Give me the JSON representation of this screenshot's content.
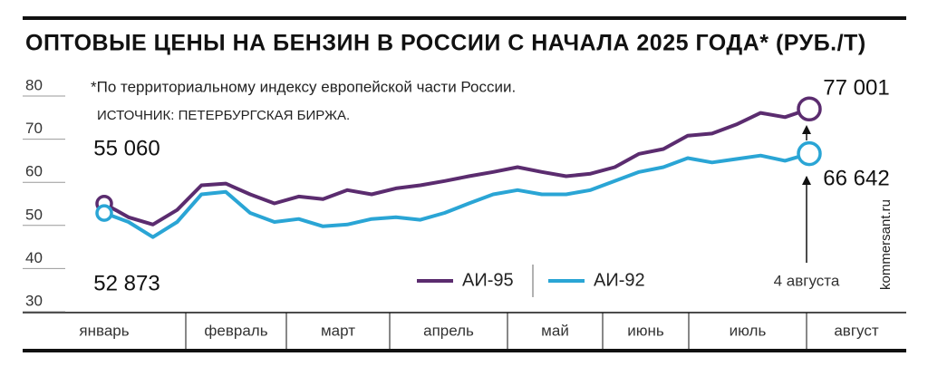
{
  "chart_data": {
    "type": "line",
    "title": "ОПТОВЫЕ ЦЕНЫ НА БЕНЗИН В РОССИИ С НАЧАЛА 2025 ГОДА* (РУБ./Т)",
    "footnote": "*По территориальному индексу европейской части России.",
    "source": "ИСТОЧНИК: ПЕТЕРБУРГСКАЯ БИРЖА.",
    "watermark": "kommersant.ru",
    "end_label": "4 августа",
    "months": [
      "январь",
      "февраль",
      "март",
      "апрель",
      "май",
      "июнь",
      "июль",
      "август"
    ],
    "ylim": [
      30,
      80
    ],
    "yticks": [
      30,
      40,
      50,
      60,
      70,
      80
    ],
    "series": [
      {
        "name": "АИ-95",
        "color": "#5b2c6f",
        "values": [
          55.06,
          51.9,
          50.2,
          53.6,
          59.3,
          59.7,
          57.2,
          55.1,
          56.7,
          56.1,
          58.2,
          57.2,
          58.6,
          59.3,
          60.3,
          61.4,
          62.4,
          63.5,
          62.4,
          61.4,
          62.0,
          63.5,
          66.6,
          67.7,
          70.8,
          71.3,
          73.4,
          76.1,
          75.1,
          77.001
        ],
        "value_labels": [
          "55 060",
          null,
          null,
          null,
          null,
          null,
          null,
          null,
          null,
          null,
          null,
          null,
          null,
          null,
          null,
          null,
          null,
          null,
          null,
          null,
          null,
          null,
          null,
          null,
          null,
          null,
          null,
          null,
          null,
          "77 001"
        ]
      },
      {
        "name": "АИ-92",
        "color": "#2aa5d5",
        "values": [
          52.873,
          50.8,
          47.3,
          50.8,
          57.2,
          57.8,
          52.9,
          50.8,
          51.5,
          49.8,
          50.2,
          51.5,
          51.9,
          51.3,
          52.9,
          55.1,
          57.2,
          58.2,
          57.2,
          57.2,
          58.2,
          60.3,
          62.4,
          63.5,
          65.6,
          64.6,
          65.4,
          66.2,
          65.0,
          66.642
        ],
        "value_labels": [
          "52 873",
          null,
          null,
          null,
          null,
          null,
          null,
          null,
          null,
          null,
          null,
          null,
          null,
          null,
          null,
          null,
          null,
          null,
          null,
          null,
          null,
          null,
          null,
          null,
          null,
          null,
          null,
          null,
          null,
          "66 642"
        ]
      }
    ]
  }
}
